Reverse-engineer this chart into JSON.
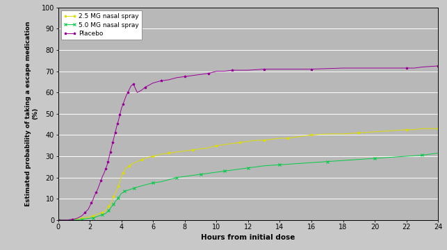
{
  "title": "",
  "xlabel": "Hours from initial dose",
  "ylabel": "Estimated probability of taking a escape medication\n(%)",
  "xlim": [
    0,
    24
  ],
  "ylim": [
    0,
    100
  ],
  "xticks": [
    0,
    2,
    4,
    6,
    8,
    10,
    12,
    14,
    16,
    18,
    20,
    22,
    24
  ],
  "yticks": [
    0,
    10,
    20,
    30,
    40,
    50,
    60,
    70,
    80,
    90,
    100
  ],
  "plot_bg_color": "#b8b8b8",
  "fig_bg_color": "#c8c8c8",
  "legend_labels": [
    "2.5 MG nasal spray",
    "5.0 MG nasal spray",
    "Placebo"
  ],
  "line_colors": [
    "#dddd00",
    "#00cc44",
    "#990099"
  ],
  "line_markers": [
    "*",
    "x",
    "*"
  ],
  "series": {
    "yellow": {
      "x": [
        0,
        0.3,
        0.5,
        0.8,
        1.0,
        1.3,
        1.5,
        1.7,
        2.0,
        2.2,
        2.4,
        2.6,
        2.8,
        3.0,
        3.1,
        3.2,
        3.3,
        3.4,
        3.5,
        3.6,
        3.7,
        3.8,
        3.9,
        4.0,
        4.1,
        4.2,
        4.3,
        4.5,
        4.7,
        5.0,
        5.3,
        5.5,
        5.7,
        6.0,
        6.3,
        6.5,
        7.0,
        7.5,
        8.0,
        8.5,
        9.0,
        9.5,
        10.0,
        10.5,
        11.0,
        11.5,
        12.0,
        12.5,
        13.0,
        13.5,
        14.0,
        14.5,
        15.0,
        15.5,
        16.0,
        17.0,
        18.0,
        19.0,
        20.0,
        21.0,
        22.0,
        22.5,
        23.0,
        24.0
      ],
      "y": [
        0,
        0,
        0,
        0,
        0.3,
        0.5,
        0.8,
        1.0,
        1.5,
        2.0,
        2.5,
        3.0,
        3.5,
        4.5,
        5.5,
        6.5,
        7.5,
        9.0,
        11.0,
        12.5,
        14.0,
        16.0,
        18.0,
        20.5,
        22.0,
        23.5,
        24.5,
        25.5,
        26.5,
        27.5,
        28.5,
        29.0,
        29.5,
        30.0,
        30.5,
        31.0,
        31.5,
        32.0,
        32.5,
        33.0,
        33.5,
        34.0,
        35.0,
        35.5,
        36.0,
        36.5,
        37.0,
        37.5,
        37.5,
        38.0,
        38.5,
        38.5,
        39.0,
        39.5,
        40.0,
        40.5,
        40.5,
        41.0,
        41.5,
        42.0,
        42.5,
        42.5,
        43.0,
        43.0
      ]
    },
    "green": {
      "x": [
        0,
        0.3,
        0.5,
        0.8,
        1.0,
        1.3,
        1.5,
        1.7,
        2.0,
        2.2,
        2.4,
        2.6,
        2.8,
        3.0,
        3.1,
        3.2,
        3.3,
        3.4,
        3.5,
        3.6,
        3.7,
        3.8,
        3.9,
        4.0,
        4.2,
        4.4,
        4.6,
        4.8,
        5.0,
        5.5,
        6.0,
        6.5,
        7.0,
        7.5,
        8.0,
        8.5,
        9.0,
        9.5,
        10.0,
        10.5,
        11.0,
        11.5,
        12.0,
        12.5,
        13.0,
        14.0,
        15.0,
        16.0,
        17.0,
        18.0,
        19.0,
        20.0,
        21.0,
        22.0,
        23.0,
        24.0
      ],
      "y": [
        0,
        0,
        0,
        0,
        0,
        0.2,
        0.3,
        0.5,
        0.8,
        1.0,
        1.5,
        2.0,
        2.5,
        3.0,
        3.8,
        4.5,
        5.5,
        6.5,
        7.5,
        8.5,
        9.5,
        10.5,
        11.5,
        12.5,
        13.5,
        14.0,
        14.5,
        15.0,
        15.5,
        16.5,
        17.5,
        18.0,
        19.0,
        20.0,
        20.5,
        21.0,
        21.5,
        22.0,
        22.5,
        23.0,
        23.5,
        24.0,
        24.5,
        25.0,
        25.5,
        26.0,
        26.5,
        27.0,
        27.5,
        28.0,
        28.5,
        29.0,
        29.5,
        30.0,
        30.5,
        31.5
      ]
    },
    "purple": {
      "x": [
        0,
        0.3,
        0.6,
        0.9,
        1.2,
        1.5,
        1.7,
        1.9,
        2.0,
        2.1,
        2.2,
        2.3,
        2.4,
        2.5,
        2.6,
        2.7,
        2.8,
        2.9,
        3.0,
        3.05,
        3.1,
        3.15,
        3.2,
        3.25,
        3.3,
        3.35,
        3.4,
        3.45,
        3.5,
        3.55,
        3.6,
        3.65,
        3.7,
        3.75,
        3.8,
        3.85,
        3.9,
        3.95,
        4.0,
        4.1,
        4.2,
        4.3,
        4.4,
        4.5,
        4.6,
        4.75,
        5.0,
        5.25,
        5.5,
        5.75,
        6.0,
        6.5,
        7.0,
        7.5,
        8.0,
        8.5,
        9.0,
        9.5,
        10.0,
        10.5,
        11.0,
        11.5,
        12.0,
        13.0,
        14.0,
        15.0,
        16.0,
        18.0,
        20.0,
        22.0,
        22.5,
        23.0,
        24.0
      ],
      "y": [
        0,
        0,
        0,
        0.3,
        0.8,
        2.0,
        3.5,
        5.0,
        6.5,
        8.0,
        9.5,
        11.5,
        13.0,
        14.5,
        16.5,
        18.5,
        20.5,
        22.0,
        24.0,
        25.0,
        26.0,
        27.5,
        29.0,
        30.5,
        32.0,
        33.5,
        35.0,
        36.5,
        38.0,
        39.5,
        41.0,
        42.5,
        44.0,
        45.5,
        46.5,
        48.0,
        49.5,
        51.0,
        52.5,
        54.5,
        56.5,
        58.5,
        60.0,
        61.5,
        63.0,
        64.0,
        60.0,
        61.0,
        62.5,
        63.5,
        64.5,
        65.5,
        66.0,
        67.0,
        67.5,
        68.0,
        68.5,
        69.0,
        70.0,
        70.0,
        70.5,
        70.5,
        70.5,
        71.0,
        71.0,
        71.0,
        71.0,
        71.5,
        71.5,
        71.5,
        71.5,
        72.0,
        72.5
      ]
    }
  }
}
